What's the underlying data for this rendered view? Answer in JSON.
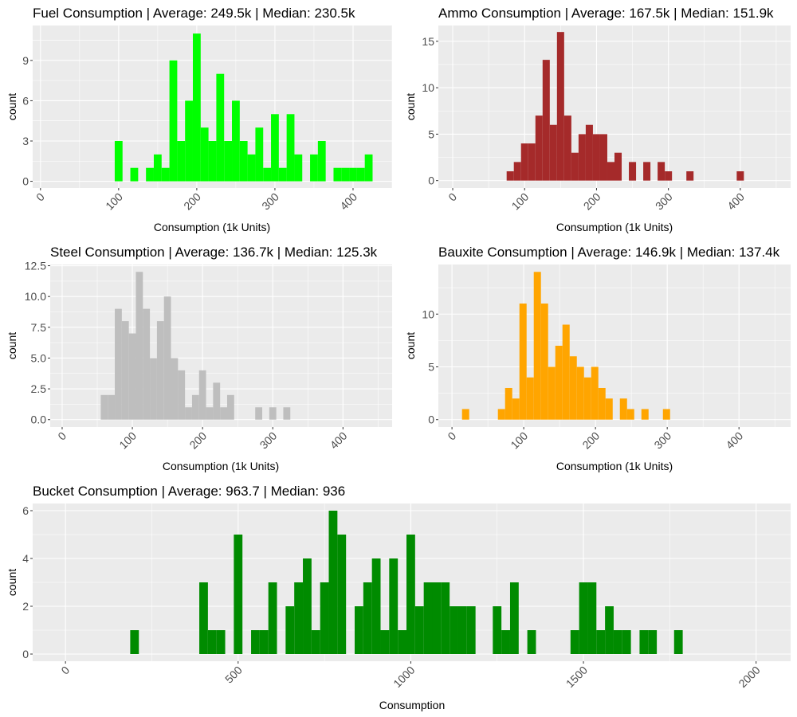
{
  "chart_data": [
    {
      "id": "fuel",
      "type": "bar",
      "subtype": "histogram",
      "title": "Fuel Consumption | Average: 249.5k | Median: 230.5k",
      "xlabel": "Consumption (1k Units)",
      "ylabel": "count",
      "color": "#00ff00",
      "binwidth": 10,
      "xlim": [
        -10,
        450
      ],
      "ylim": [
        -0.5,
        11.6
      ],
      "xticks": [
        0,
        100,
        200,
        300,
        400
      ],
      "xtick_labels": [
        "0",
        "100",
        "200",
        "300",
        "400"
      ],
      "yticks": [
        0,
        3,
        6,
        9
      ],
      "ytick_labels": [
        "0",
        "3",
        "6",
        "9"
      ],
      "grid": true,
      "bins": [
        100,
        110,
        120,
        130,
        140,
        150,
        160,
        170,
        180,
        190,
        200,
        210,
        220,
        230,
        240,
        250,
        260,
        270,
        280,
        290,
        300,
        310,
        320,
        330,
        340,
        350,
        360,
        370,
        380,
        390,
        400,
        410,
        420
      ],
      "counts": [
        3,
        0,
        1,
        0,
        1,
        2,
        1,
        9,
        3,
        6,
        11,
        4,
        3,
        8,
        3,
        6,
        3,
        2,
        4,
        1,
        5,
        1,
        5,
        2,
        0,
        2,
        3,
        0,
        1,
        1,
        1,
        1,
        2
      ]
    },
    {
      "id": "ammo",
      "type": "bar",
      "subtype": "histogram",
      "title": "Ammo Consumption | Average: 167.5k | Median: 151.9k",
      "xlabel": "Consumption (1k Units)",
      "ylabel": "count",
      "color": "#a52a2a",
      "binwidth": 10,
      "xlim": [
        -20,
        470
      ],
      "ylim": [
        -0.8,
        16.7
      ],
      "xticks": [
        0,
        100,
        200,
        300,
        400
      ],
      "xtick_labels": [
        "0",
        "100",
        "200",
        "300",
        "400"
      ],
      "yticks": [
        0,
        5,
        10,
        15
      ],
      "ytick_labels": [
        "0",
        "5",
        "10",
        "15"
      ],
      "grid": true,
      "bins": [
        80,
        90,
        100,
        110,
        120,
        130,
        140,
        150,
        160,
        170,
        180,
        190,
        200,
        210,
        220,
        230,
        240,
        250,
        260,
        270,
        280,
        290,
        300,
        310,
        320,
        330,
        340,
        350,
        360,
        370,
        380,
        390,
        400
      ],
      "counts": [
        1,
        2,
        4,
        4,
        7,
        13,
        6,
        16,
        7,
        3,
        5,
        6,
        5,
        5,
        2,
        3,
        0,
        2,
        0,
        2,
        0,
        2,
        1,
        0,
        0,
        1,
        0,
        0,
        0,
        0,
        0,
        0,
        1
      ]
    },
    {
      "id": "steel",
      "type": "bar",
      "subtype": "histogram",
      "title": "Steel Consumption | Average: 136.7k | Median: 125.3k",
      "xlabel": "Consumption (1k Units)",
      "ylabel": "count",
      "color": "#bebebe",
      "binwidth": 10,
      "xlim": [
        -17,
        470
      ],
      "ylim": [
        -0.6,
        12.6
      ],
      "xticks": [
        0,
        100,
        200,
        300,
        400
      ],
      "xtick_labels": [
        "0",
        "100",
        "200",
        "300",
        "400"
      ],
      "yticks": [
        0,
        2.5,
        5,
        7.5,
        10,
        12.5
      ],
      "ytick_labels": [
        "0.0",
        "2.5",
        "5.0",
        "7.5",
        "10.0",
        "12.5"
      ],
      "grid": true,
      "bins": [
        60,
        70,
        80,
        90,
        100,
        110,
        120,
        130,
        140,
        150,
        160,
        170,
        180,
        190,
        200,
        210,
        220,
        230,
        240,
        250,
        260,
        270,
        280,
        290,
        300,
        310,
        320
      ],
      "counts": [
        2,
        2,
        9,
        8,
        7,
        12,
        9,
        5,
        8,
        10,
        5,
        4,
        1,
        2,
        4,
        1,
        3,
        1,
        2,
        0,
        0,
        0,
        1,
        0,
        1,
        0,
        1
      ]
    },
    {
      "id": "bauxite",
      "type": "bar",
      "subtype": "histogram",
      "title": "Bauxite Consumption | Average: 146.9k | Median: 137.4k",
      "xlabel": "Consumption (1k Units)",
      "ylabel": "count",
      "color": "#ffa500",
      "binwidth": 10,
      "xlim": [
        -19,
        472
      ],
      "ylim": [
        -0.7,
        14.7
      ],
      "xticks": [
        0,
        100,
        200,
        300,
        400
      ],
      "xtick_labels": [
        "0",
        "100",
        "200",
        "300",
        "400"
      ],
      "yticks": [
        0,
        5,
        10
      ],
      "ytick_labels": [
        "0",
        "5",
        "10"
      ],
      "grid": true,
      "bins": [
        19,
        29,
        39,
        49,
        59,
        69,
        79,
        89,
        99,
        109,
        119,
        129,
        139,
        149,
        159,
        169,
        179,
        189,
        199,
        209,
        219,
        229,
        239,
        249,
        259,
        269,
        279,
        289,
        299
      ],
      "counts": [
        1,
        0,
        0,
        0,
        0,
        1,
        3,
        2,
        11,
        4,
        14,
        11,
        5,
        7,
        9,
        6,
        5,
        4,
        5,
        3,
        2,
        0,
        2,
        1,
        0,
        1,
        0,
        0,
        1
      ]
    },
    {
      "id": "bucket",
      "type": "bar",
      "subtype": "histogram",
      "title": "Bucket Consumption | Average: 963.7 | Median: 936",
      "xlabel": "Consumption",
      "ylabel": "count",
      "color": "#008b00",
      "binwidth": 25,
      "xlim": [
        -95,
        2100
      ],
      "ylim": [
        -0.3,
        6.3
      ],
      "xticks": [
        0,
        500,
        1000,
        1500,
        2000
      ],
      "xtick_labels": [
        "0",
        "500",
        "1000",
        "1500",
        "2000"
      ],
      "yticks": [
        0,
        2,
        4,
        6
      ],
      "ytick_labels": [
        "0",
        "2",
        "4",
        "6"
      ],
      "grid": true,
      "bins": [
        200,
        225,
        250,
        275,
        300,
        325,
        350,
        375,
        400,
        425,
        450,
        475,
        500,
        525,
        550,
        575,
        600,
        625,
        650,
        675,
        700,
        725,
        750,
        775,
        800,
        825,
        850,
        875,
        900,
        925,
        950,
        975,
        1000,
        1025,
        1050,
        1075,
        1100,
        1125,
        1150,
        1175,
        1200,
        1225,
        1250,
        1275,
        1300,
        1325,
        1350,
        1375,
        1400,
        1425,
        1450,
        1475,
        1500,
        1525,
        1550,
        1575,
        1600,
        1625,
        1650,
        1675,
        1700,
        1725,
        1750,
        1775
      ],
      "counts": [
        1,
        0,
        0,
        0,
        0,
        0,
        0,
        0,
        3,
        1,
        1,
        0,
        5,
        0,
        1,
        1,
        3,
        0,
        2,
        3,
        4,
        1,
        3,
        6,
        5,
        0,
        2,
        3,
        4,
        1,
        4,
        1,
        5,
        2,
        3,
        3,
        3,
        2,
        2,
        2,
        0,
        0,
        2,
        1,
        3,
        0,
        1,
        0,
        0,
        0,
        0,
        1,
        3,
        3,
        1,
        2,
        1,
        1,
        0,
        1,
        1,
        0,
        0,
        1
      ]
    }
  ]
}
